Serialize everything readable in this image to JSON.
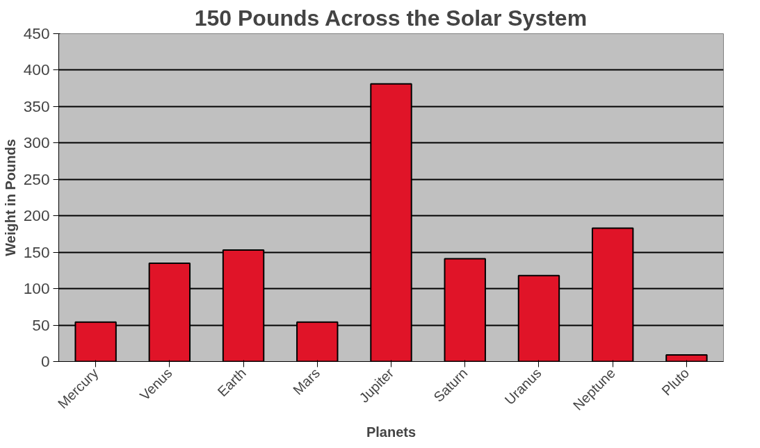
{
  "chart_data": {
    "type": "bar",
    "title": "150 Pounds Across the Solar System",
    "xlabel": "Planets",
    "ylabel": "Weight in Pounds",
    "categories": [
      "Mercury",
      "Venus",
      "Earth",
      "Mars",
      "Jupiter",
      "Saturn",
      "Uranus",
      "Neptune",
      "Pluto"
    ],
    "values": [
      54,
      135,
      153,
      54,
      381,
      141,
      118,
      183,
      9
    ],
    "color": "#e01428",
    "ylim": [
      0,
      450
    ],
    "yticks": [
      0,
      50,
      100,
      150,
      200,
      250,
      300,
      350,
      400,
      450
    ],
    "grid": "y"
  }
}
